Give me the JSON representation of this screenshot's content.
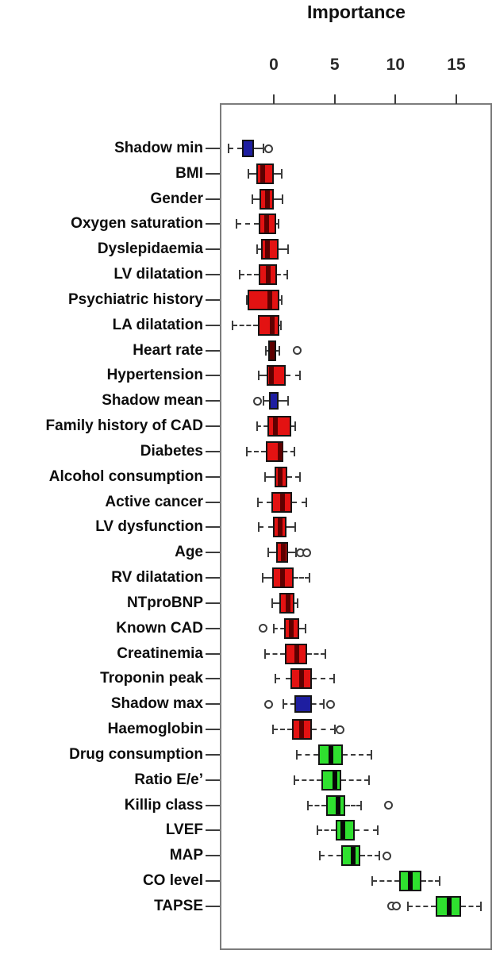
{
  "chart_data": {
    "type": "boxplot",
    "orientation": "horizontal",
    "title": "Importance",
    "xlabel": "Importance",
    "x_ticks": [
      0,
      5,
      10,
      15
    ],
    "xlim": [
      -4.4,
      17.9
    ],
    "grid": false,
    "legend_position": "none",
    "colors": {
      "red_box": "#E31212",
      "red_median": "#5E0000",
      "blue_box": "#1E1EA0",
      "green_box": "#2FE02F",
      "green_median": "#070707",
      "box_border": "#141414",
      "whisker": "#3C3C3C",
      "outlier": "#3C3C3C",
      "frame": "#7C7C7C",
      "text": "#0D0D0D"
    },
    "series": [
      {
        "label": "Shadow min",
        "color": "blue",
        "whisker_low": -3.7,
        "q1": -2.6,
        "median": -2.1,
        "q3": -1.65,
        "whisker_high": -0.85,
        "outliers": [
          -0.45
        ]
      },
      {
        "label": "BMI",
        "color": "red",
        "whisker_low": -2.1,
        "q1": -1.45,
        "median": -0.9,
        "q3": 0.0,
        "whisker_high": 0.65,
        "outliers": []
      },
      {
        "label": "Gender",
        "color": "red",
        "whisker_low": -1.75,
        "q1": -1.15,
        "median": -0.55,
        "q3": 0.0,
        "whisker_high": 0.7,
        "outliers": []
      },
      {
        "label": "Oxygen saturation",
        "color": "red",
        "whisker_low": -3.05,
        "q1": -1.25,
        "median": -0.6,
        "q3": 0.2,
        "whisker_high": 0.4,
        "outliers": []
      },
      {
        "label": "Dyslepidaemia",
        "color": "red",
        "whisker_low": -1.4,
        "q1": -1.05,
        "median": -0.5,
        "q3": 0.4,
        "whisker_high": 1.15,
        "outliers": []
      },
      {
        "label": "LV dilatation",
        "color": "red",
        "whisker_low": -2.8,
        "q1": -1.25,
        "median": -0.45,
        "q3": 0.25,
        "whisker_high": 1.1,
        "outliers": []
      },
      {
        "label": "Psychiatric history",
        "color": "red",
        "whisker_low": -2.25,
        "q1": -2.15,
        "median": -0.3,
        "q3": 0.45,
        "whisker_high": 0.65,
        "outliers": []
      },
      {
        "label": "LA dilatation",
        "color": "red",
        "whisker_low": -3.4,
        "q1": -1.3,
        "median": -0.15,
        "q3": 0.45,
        "whisker_high": 0.6,
        "outliers": []
      },
      {
        "label": "Heart rate",
        "color": "red",
        "whisker_low": -0.65,
        "q1": -0.45,
        "median": -0.1,
        "q3": 0.2,
        "whisker_high": 0.45,
        "outliers": [
          1.95
        ]
      },
      {
        "label": "Hypertension",
        "color": "red",
        "whisker_low": -1.25,
        "q1": -0.6,
        "median": -0.2,
        "q3": 1.0,
        "whisker_high": 2.15,
        "outliers": []
      },
      {
        "label": "Shadow mean",
        "color": "blue",
        "whisker_low": -0.85,
        "q1": -0.4,
        "median": 0.0,
        "q3": 0.4,
        "whisker_high": 1.15,
        "outliers": [
          -1.35
        ]
      },
      {
        "label": "Family history of CAD",
        "color": "red",
        "whisker_low": -1.35,
        "q1": -0.5,
        "median": 0.1,
        "q3": 1.45,
        "whisker_high": 1.75,
        "outliers": []
      },
      {
        "label": "Diabetes",
        "color": "red",
        "whisker_low": -2.2,
        "q1": -0.65,
        "median": 0.55,
        "q3": 0.8,
        "whisker_high": 1.7,
        "outliers": []
      },
      {
        "label": "Alcohol consumption",
        "color": "red",
        "whisker_low": -0.7,
        "q1": 0.05,
        "median": 0.55,
        "q3": 1.1,
        "whisker_high": 2.15,
        "outliers": []
      },
      {
        "label": "Active cancer",
        "color": "red",
        "whisker_low": -1.3,
        "q1": -0.2,
        "median": 0.7,
        "q3": 1.5,
        "whisker_high": 2.65,
        "outliers": []
      },
      {
        "label": "LV dysfunction",
        "color": "red",
        "whisker_low": -1.25,
        "q1": -0.05,
        "median": 0.5,
        "q3": 1.05,
        "whisker_high": 1.75,
        "outliers": []
      },
      {
        "label": "Age",
        "color": "red",
        "whisker_low": -0.45,
        "q1": 0.2,
        "median": 0.8,
        "q3": 1.15,
        "whisker_high": 1.85,
        "outliers": [
          2.2,
          2.7
        ]
      },
      {
        "label": "RV dilatation",
        "color": "red",
        "whisker_low": -0.9,
        "q1": -0.15,
        "median": 0.75,
        "q3": 1.6,
        "whisker_high": 2.95,
        "outliers": []
      },
      {
        "label": "NTproBNP",
        "color": "red",
        "whisker_low": -0.15,
        "q1": 0.45,
        "median": 1.2,
        "q3": 1.7,
        "whisker_high": 1.95,
        "outliers": []
      },
      {
        "label": "Known CAD",
        "color": "red",
        "whisker_low": 0.0,
        "q1": 0.85,
        "median": 1.45,
        "q3": 2.1,
        "whisker_high": 2.6,
        "outliers": [
          -0.85
        ]
      },
      {
        "label": "Creatinemia",
        "color": "red",
        "whisker_low": -0.7,
        "q1": 0.9,
        "median": 1.9,
        "q3": 2.75,
        "whisker_high": 4.25,
        "outliers": []
      },
      {
        "label": "Troponin peak",
        "color": "red",
        "whisker_low": 0.1,
        "q1": 1.35,
        "median": 2.3,
        "q3": 3.1,
        "whisker_high": 4.95,
        "outliers": []
      },
      {
        "label": "Shadow max",
        "color": "blue",
        "whisker_low": 0.8,
        "q1": 1.7,
        "median": 2.4,
        "q3": 3.1,
        "whisker_high": 4.1,
        "outliers": [
          -0.45,
          4.65
        ]
      },
      {
        "label": "Haemoglobin",
        "color": "red",
        "whisker_low": -0.05,
        "q1": 1.5,
        "median": 2.3,
        "q3": 3.1,
        "whisker_high": 5.05,
        "outliers": [
          5.45
        ]
      },
      {
        "label": "Drug consumption",
        "color": "green",
        "whisker_low": 1.9,
        "q1": 3.65,
        "median": 4.7,
        "q3": 5.65,
        "whisker_high": 8.0,
        "outliers": []
      },
      {
        "label": "Ratio E/e’",
        "color": "green",
        "whisker_low": 1.7,
        "q1": 3.9,
        "median": 5.0,
        "q3": 5.55,
        "whisker_high": 7.8,
        "outliers": []
      },
      {
        "label": "Killip class",
        "color": "green",
        "whisker_low": 2.8,
        "q1": 4.3,
        "median": 5.3,
        "q3": 5.9,
        "whisker_high": 7.15,
        "outliers": [
          9.4
        ]
      },
      {
        "label": "LVEF",
        "color": "green",
        "whisker_low": 3.6,
        "q1": 5.1,
        "median": 5.7,
        "q3": 6.65,
        "whisker_high": 8.55,
        "outliers": []
      },
      {
        "label": "MAP",
        "color": "green",
        "whisker_low": 3.8,
        "q1": 5.55,
        "median": 6.5,
        "q3": 7.1,
        "whisker_high": 8.65,
        "outliers": [
          9.3
        ]
      },
      {
        "label": "CO level",
        "color": "green",
        "whisker_low": 8.1,
        "q1": 10.3,
        "median": 11.2,
        "q3": 12.1,
        "whisker_high": 13.6,
        "outliers": []
      },
      {
        "label": "TAPSE",
        "color": "green",
        "whisker_low": 11.0,
        "q1": 13.3,
        "median": 14.4,
        "q3": 15.4,
        "whisker_high": 17.05,
        "outliers": [
          9.7,
          10.1
        ]
      }
    ]
  }
}
